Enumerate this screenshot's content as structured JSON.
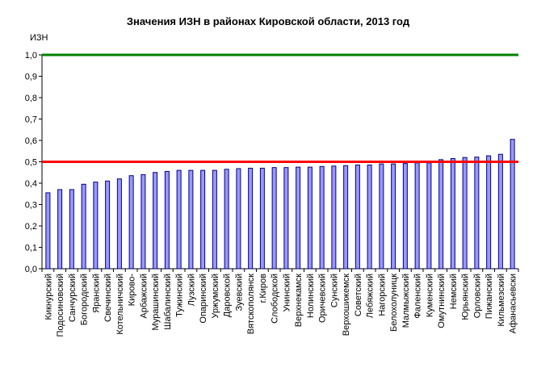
{
  "chart_data": {
    "type": "bar",
    "title": "Значения ИЗН в районах Кировской области, 2013 год",
    "ylabel": "ИЗН",
    "xlabel": "",
    "ylim": [
      0,
      1.0
    ],
    "yticks": [
      "0,0",
      "0,1",
      "0,2",
      "0,3",
      "0,4",
      "0,5",
      "0,6",
      "0,7",
      "0,8",
      "0,9",
      "1,0"
    ],
    "grid": false,
    "categories": [
      "Кикнурский",
      "Подосиновский",
      "Санчурский",
      "Богородский",
      "Яранский",
      "Свечинский",
      "Котельничский",
      "Кирово-",
      "Арбажский",
      "Мурашинский",
      "Шабалинский",
      "Тужинский",
      "Лузский",
      "Опаринский",
      "Уржумский",
      "Даровской",
      "Зуевский",
      "Вятскополянск",
      "г.Киров",
      "Слободской",
      "Унинский",
      "Верхнекамск",
      "Нолинский",
      "Оричевский",
      "Сунский",
      "Верхошижемск",
      "Советский",
      "Лебяжский",
      "Нагорский",
      "Белохолуницк",
      "Малмыжский",
      "Фаленский",
      "Куменский",
      "Омутнинский",
      "Немский",
      "Юрьянский",
      "Орловский",
      "Пижанский",
      "Кильмезский",
      "Афанасьевски"
    ],
    "values": [
      0.355,
      0.37,
      0.37,
      0.395,
      0.405,
      0.41,
      0.42,
      0.435,
      0.44,
      0.45,
      0.455,
      0.46,
      0.46,
      0.46,
      0.46,
      0.465,
      0.468,
      0.47,
      0.47,
      0.473,
      0.473,
      0.475,
      0.475,
      0.478,
      0.48,
      0.482,
      0.485,
      0.485,
      0.49,
      0.49,
      0.492,
      0.495,
      0.495,
      0.51,
      0.515,
      0.52,
      0.522,
      0.528,
      0.535,
      0.605
    ],
    "reference_lines": [
      {
        "value": 1.0,
        "color": "#008000"
      },
      {
        "value": 0.5,
        "color": "#ff0000"
      }
    ],
    "bar_color": "#9999ff",
    "bar_edge_color": "#000080"
  }
}
